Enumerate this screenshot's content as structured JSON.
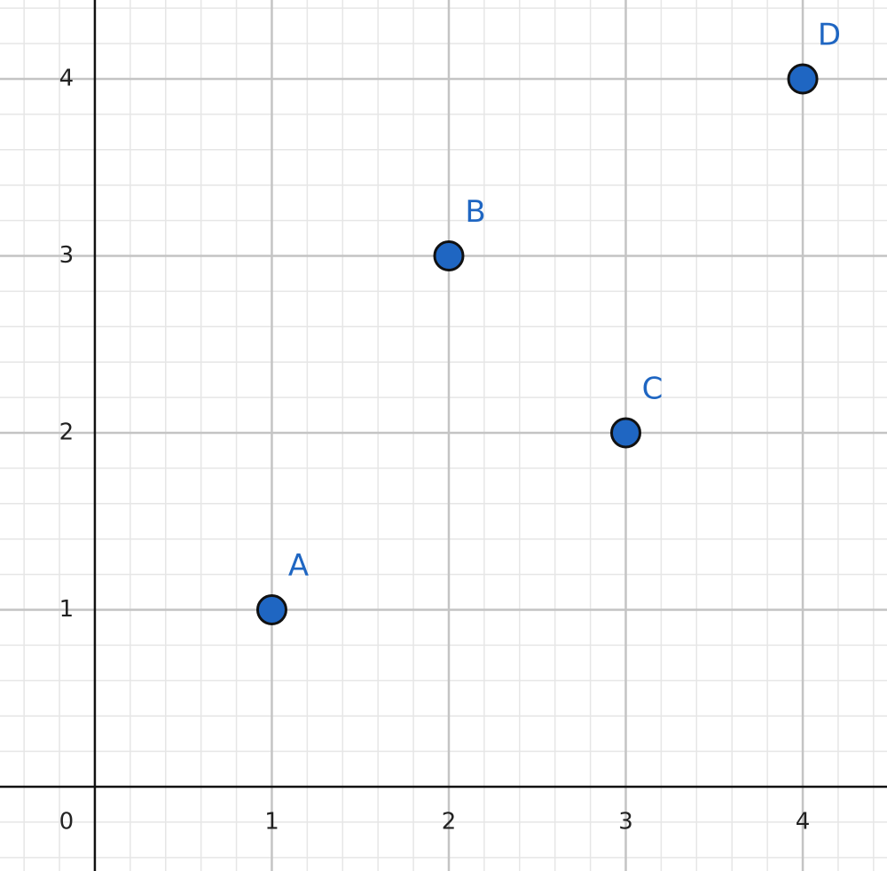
{
  "chart_data": {
    "type": "scatter",
    "x": [
      1,
      2,
      3,
      4
    ],
    "values": [
      1,
      3,
      2,
      4
    ],
    "point_labels": [
      "A",
      "B",
      "C",
      "D"
    ],
    "color": "#1f66c2",
    "xlim": [
      -0.536,
      4.476
    ],
    "ylim": [
      -0.476,
      4.446
    ],
    "xticks": [
      0,
      1,
      2,
      3,
      4
    ],
    "yticks": [
      1,
      2,
      3,
      4
    ],
    "grid": true
  }
}
